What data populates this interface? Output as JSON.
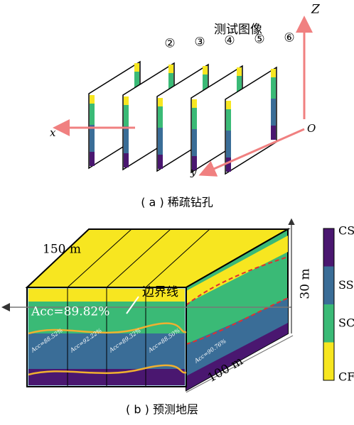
{
  "panel_a": {
    "heading": "测试图像",
    "planes": [
      "②",
      "③",
      "④",
      "⑤",
      "⑥"
    ],
    "axes": {
      "z": "Z",
      "x": "x",
      "y": "y",
      "origin": "O"
    },
    "caption": "( a ) 稀疏钻孔"
  },
  "panel_b": {
    "width_label": "150 m",
    "depth_label": "100 m",
    "height_label": "30 m",
    "overall_accuracy": "Acc=89.82%",
    "boundary_label": "边界线",
    "section_accuracies": [
      "Acc=88.52%",
      "Acc=92.22%",
      "Acc=89.32%",
      "Acc=88.50%",
      "Acc=90.76%"
    ],
    "colorbar": [
      "CS",
      "SS",
      "SC",
      "CF"
    ],
    "caption": "( b ) 预测地层"
  }
}
